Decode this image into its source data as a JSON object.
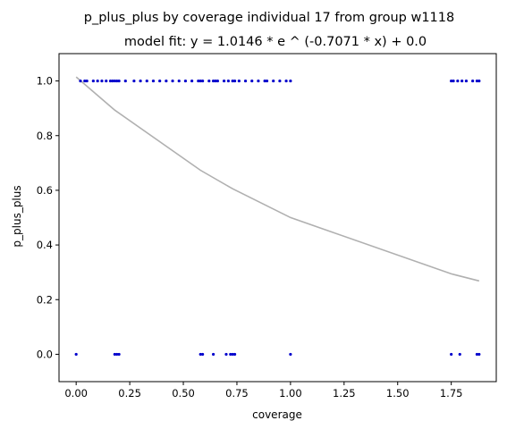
{
  "chart_data": {
    "type": "scatter",
    "title": "p_plus_plus by coverage individual 17 from group w1118",
    "subtitle": "model fit: y = 1.0146 * e ^ (-0.7071 * x) + 0.0",
    "xlabel": "coverage",
    "ylabel": "p_plus_plus",
    "xlim": [
      -0.08,
      1.96
    ],
    "ylim": [
      -0.1,
      1.1
    ],
    "x_ticks": [
      "0.00",
      "0.25",
      "0.50",
      "0.75",
      "1.00",
      "1.25",
      "1.50",
      "1.75"
    ],
    "y_ticks": [
      "0.0",
      "0.2",
      "0.4",
      "0.6",
      "0.8",
      "1.0"
    ],
    "grid": false,
    "point_color": "#0000cc",
    "fit_color": "#b0b0b0",
    "series": [
      {
        "values": [
          [
            0.02,
            1
          ],
          [
            0.04,
            1
          ],
          [
            0.05,
            1
          ],
          [
            0.08,
            1
          ],
          [
            0.1,
            1
          ],
          [
            0.12,
            1
          ],
          [
            0.14,
            1
          ],
          [
            0.16,
            1
          ],
          [
            0.17,
            1
          ],
          [
            0.18,
            1
          ],
          [
            0.19,
            1
          ],
          [
            0.2,
            1
          ],
          [
            0.23,
            1
          ],
          [
            0.27,
            1
          ],
          [
            0.3,
            1
          ],
          [
            0.33,
            1
          ],
          [
            0.36,
            1
          ],
          [
            0.39,
            1
          ],
          [
            0.42,
            1
          ],
          [
            0.45,
            1
          ],
          [
            0.48,
            1
          ],
          [
            0.51,
            1
          ],
          [
            0.54,
            1
          ],
          [
            0.57,
            1
          ],
          [
            0.58,
            1
          ],
          [
            0.59,
            1
          ],
          [
            0.62,
            1
          ],
          [
            0.64,
            1
          ],
          [
            0.65,
            1
          ],
          [
            0.66,
            1
          ],
          [
            0.69,
            1
          ],
          [
            0.71,
            1
          ],
          [
            0.73,
            1
          ],
          [
            0.74,
            1
          ],
          [
            0.76,
            1
          ],
          [
            0.79,
            1
          ],
          [
            0.82,
            1
          ],
          [
            0.85,
            1
          ],
          [
            0.88,
            1
          ],
          [
            0.89,
            1
          ],
          [
            0.92,
            1
          ],
          [
            0.95,
            1
          ],
          [
            0.98,
            1
          ],
          [
            1.0,
            1
          ],
          [
            1.75,
            1
          ],
          [
            1.76,
            1
          ],
          [
            1.78,
            1
          ],
          [
            1.8,
            1
          ],
          [
            1.82,
            1
          ],
          [
            1.85,
            1
          ],
          [
            1.87,
            1
          ],
          [
            1.88,
            1
          ],
          [
            0.0,
            0
          ],
          [
            0.18,
            0
          ],
          [
            0.19,
            0
          ],
          [
            0.2,
            0
          ],
          [
            0.58,
            0
          ],
          [
            0.59,
            0
          ],
          [
            0.64,
            0
          ],
          [
            0.7,
            0
          ],
          [
            0.72,
            0
          ],
          [
            0.73,
            0
          ],
          [
            0.74,
            0
          ],
          [
            1.0,
            0
          ],
          [
            1.75,
            0
          ],
          [
            1.79,
            0
          ],
          [
            1.87,
            0
          ],
          [
            1.88,
            0
          ]
        ]
      },
      {
        "fit": {
          "a": 1.0146,
          "b": -0.7071,
          "c": 0.0
        },
        "x": [
          0.0,
          0.18,
          0.58,
          0.73,
          1.0,
          1.75,
          1.88
        ]
      }
    ]
  }
}
